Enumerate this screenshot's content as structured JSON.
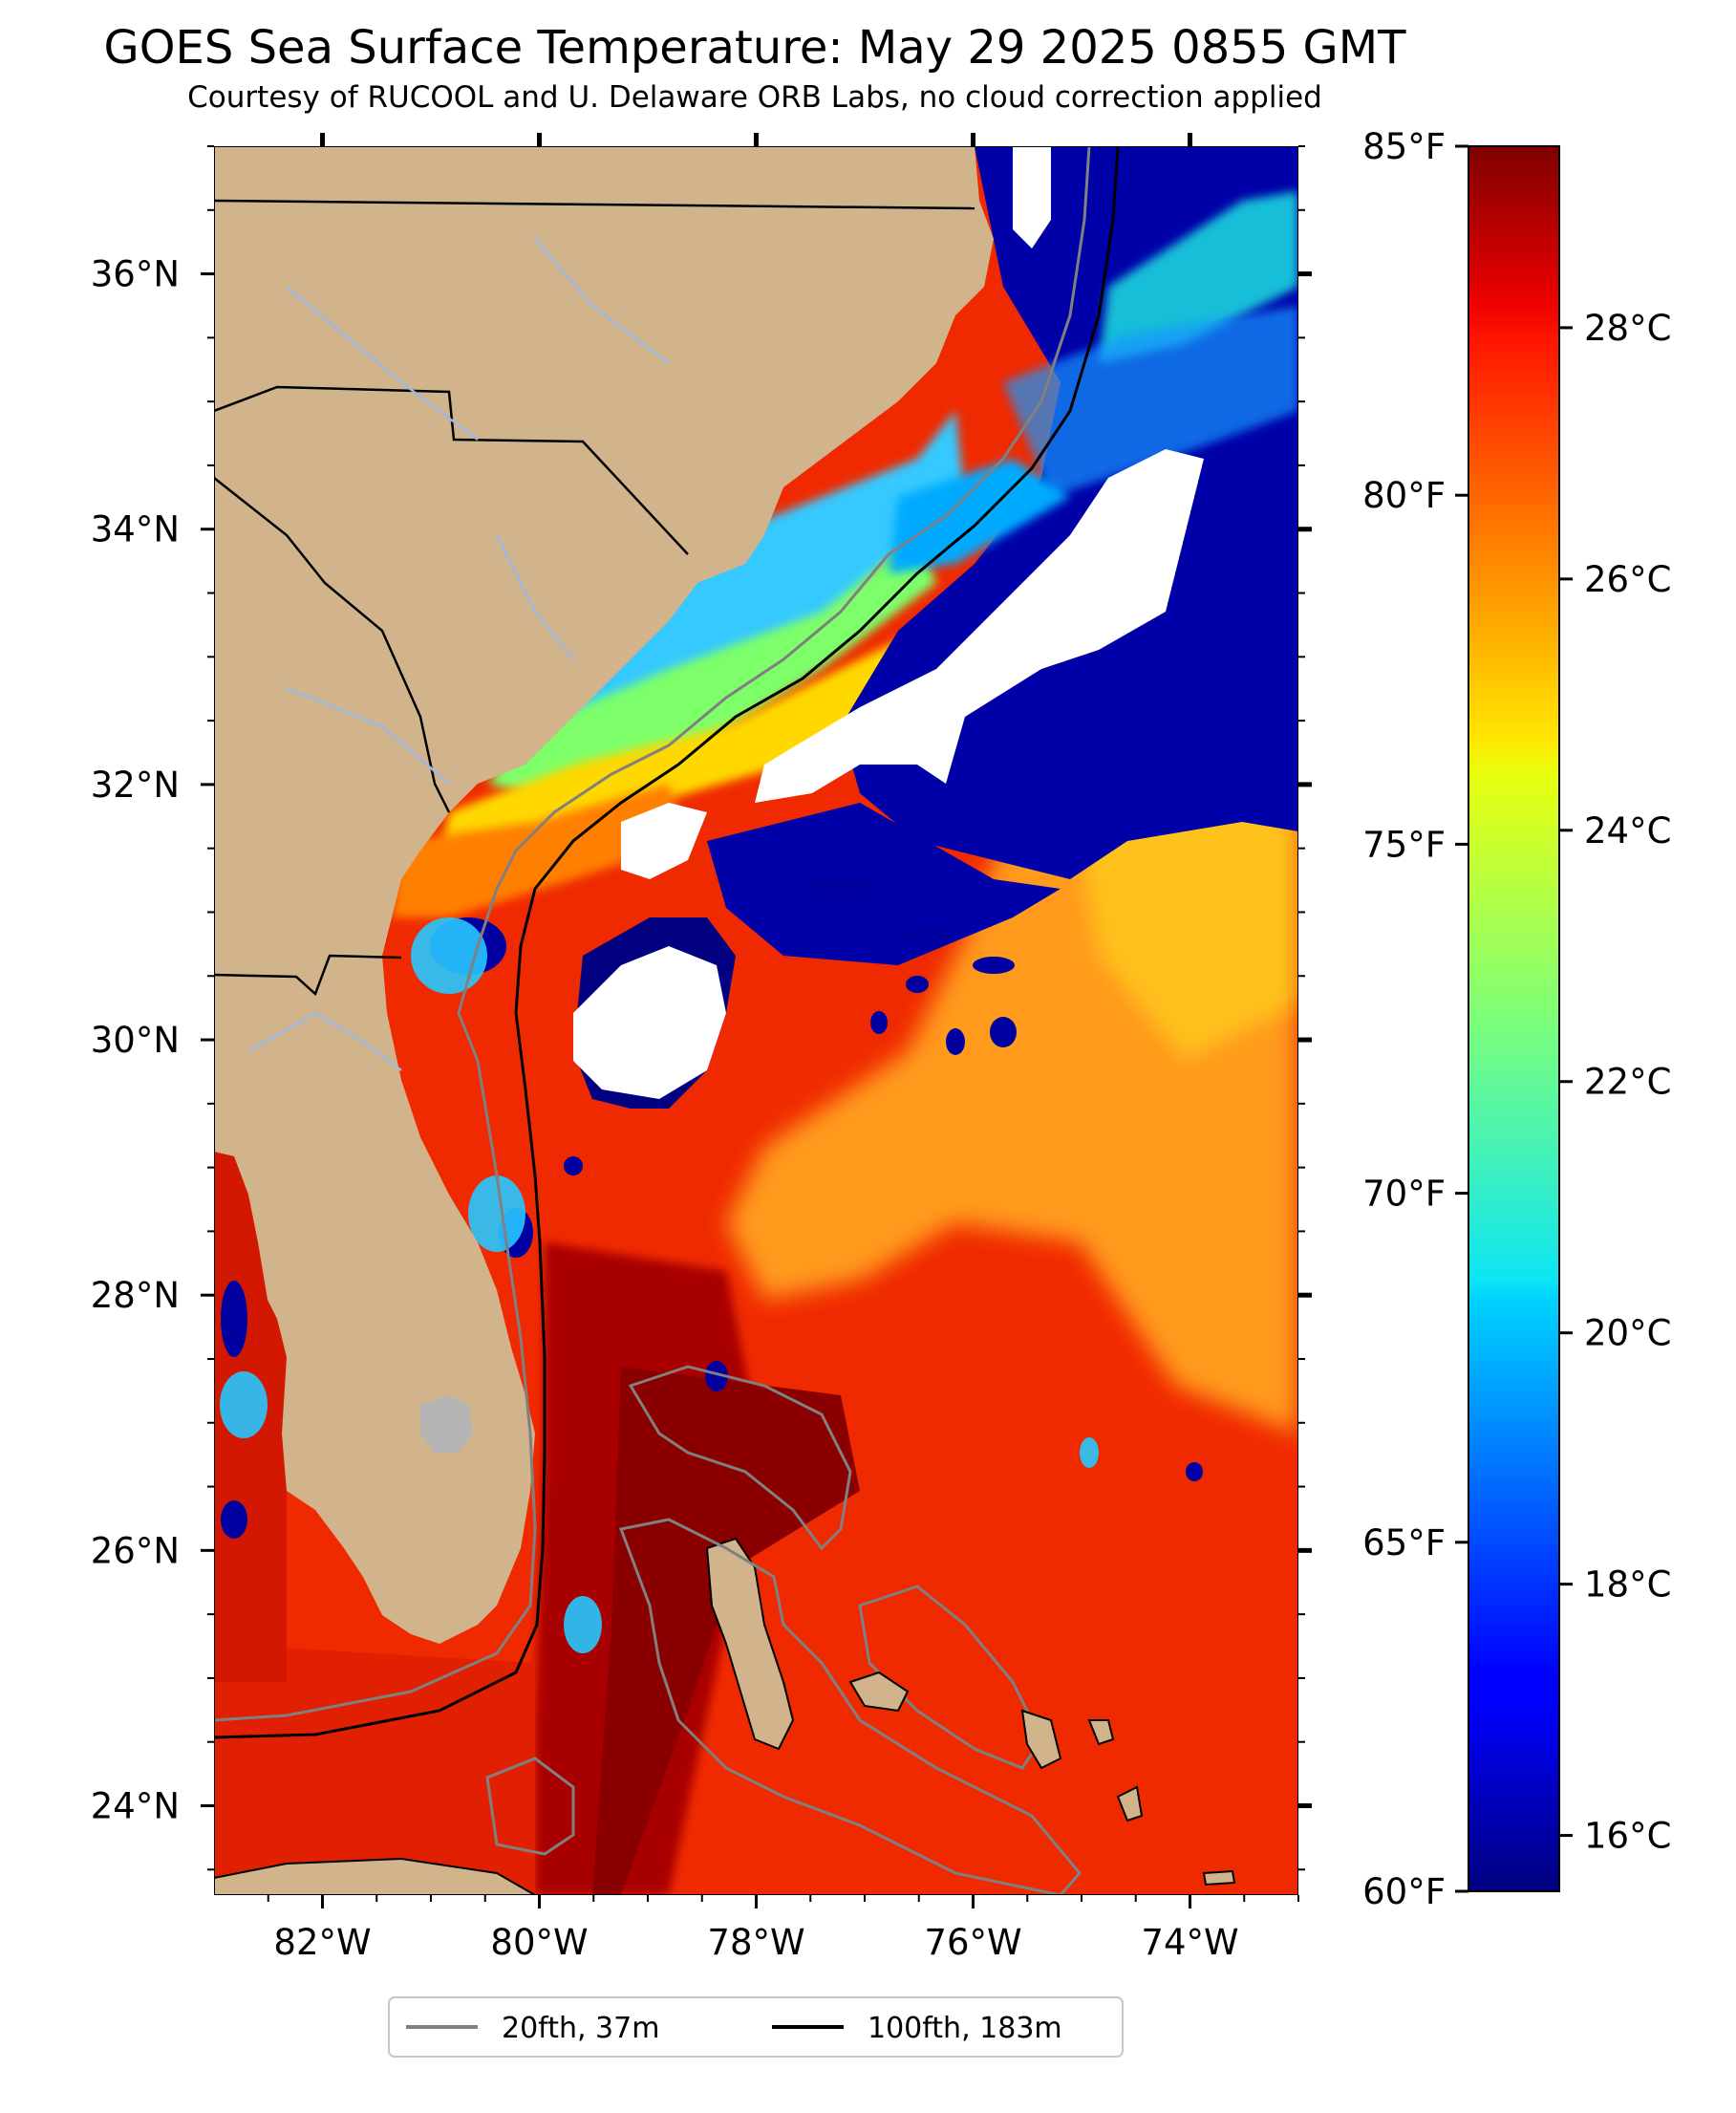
{
  "title": "GOES Sea Surface Temperature: May 29 2025 0855 GMT",
  "subtitle": "Courtesy of RUCOOL and U. Delaware ORB Labs, no cloud correction applied",
  "map": {
    "lon_range": [
      -83,
      -73
    ],
    "lat_range": [
      23.3,
      37.0
    ],
    "lat_ticks": [
      {
        "value": 24,
        "label": "24°N"
      },
      {
        "value": 26,
        "label": "26°N"
      },
      {
        "value": 28,
        "label": "28°N"
      },
      {
        "value": 30,
        "label": "30°N"
      },
      {
        "value": 32,
        "label": "32°N"
      },
      {
        "value": 34,
        "label": "34°N"
      },
      {
        "value": 36,
        "label": "36°N"
      }
    ],
    "lon_ticks": [
      {
        "value": -82,
        "label": "82°W"
      },
      {
        "value": -80,
        "label": "80°W"
      },
      {
        "value": -78,
        "label": "78°W"
      },
      {
        "value": -76,
        "label": "76°W"
      },
      {
        "value": -74,
        "label": "74°W"
      }
    ],
    "colors": {
      "land": "#d2b48c",
      "cloud": "#ffffff",
      "lake": "#b4b4b4",
      "river": "#9db9e0",
      "contour_20": "#808080",
      "contour_100": "#000000"
    }
  },
  "colorbar": {
    "colormap": "jet",
    "min_f": 60,
    "max_f": 85,
    "f_ticks": [
      {
        "value": 60,
        "label": "60°F"
      },
      {
        "value": 65,
        "label": "65°F"
      },
      {
        "value": 70,
        "label": "70°F"
      },
      {
        "value": 75,
        "label": "75°F"
      },
      {
        "value": 80,
        "label": "80°F"
      },
      {
        "value": 85,
        "label": "85°F"
      }
    ],
    "c_ticks": [
      {
        "value": 16,
        "label": "16°C"
      },
      {
        "value": 18,
        "label": "18°C"
      },
      {
        "value": 20,
        "label": "20°C"
      },
      {
        "value": 22,
        "label": "22°C"
      },
      {
        "value": 24,
        "label": "24°C"
      },
      {
        "value": 26,
        "label": "26°C"
      },
      {
        "value": 28,
        "label": "28°C"
      }
    ]
  },
  "legend": {
    "items": [
      {
        "label": "20fth, 37m",
        "color": "#808080"
      },
      {
        "label": "100fth, 183m",
        "color": "#000000"
      }
    ]
  }
}
